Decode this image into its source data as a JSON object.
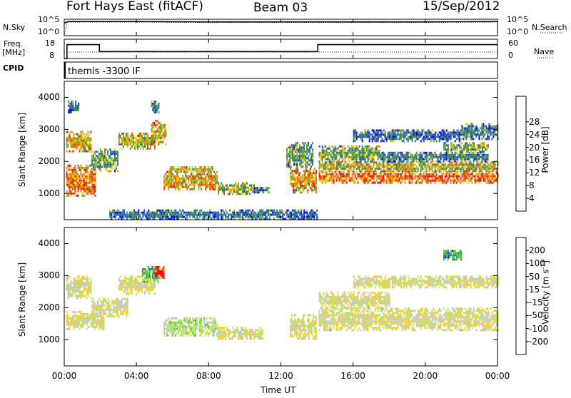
{
  "header": {
    "station": "Fort Hays East (fitACF)",
    "beam": "Beam 03",
    "date": "15/Sep/2012"
  },
  "aux_labels": {
    "nsky": "N.Sky",
    "nsky_ticks": [
      "10^5",
      "10^0"
    ],
    "nsearch": "N.Search",
    "nsearch_ticks": [
      "10^5",
      "10^0"
    ],
    "freq_line1": "Freq.",
    "freq_line2": "[MHz]",
    "freq_ticks": [
      "18",
      "8"
    ],
    "nave": "Nave",
    "nave_ticks": [
      "60",
      "0"
    ],
    "cpid": "CPID",
    "program": "themis -3300 IF"
  },
  "chart_data": [
    {
      "type": "line",
      "panel": "noise",
      "series": [
        {
          "name": "N.Sky",
          "style": "solid",
          "x": [
            0,
            0.15,
            0.3,
            4,
            8,
            12,
            16,
            20,
            24
          ],
          "y": [
            3.8,
            4.2,
            4.3,
            4.3,
            4.2,
            4.2,
            4.2,
            4.2,
            4.3
          ]
        },
        {
          "name": "N.Search",
          "style": "dotted",
          "x": [
            0,
            0.15,
            0.3,
            4,
            8,
            12,
            16,
            20,
            24
          ],
          "y": [
            0,
            4.0,
            4.1,
            4.1,
            4.0,
            4.0,
            4.0,
            4.0,
            4.1
          ]
        }
      ],
      "ylim": [
        0,
        5
      ]
    },
    {
      "type": "line",
      "panel": "frequency",
      "series": [
        {
          "name": "Freq.",
          "style": "solid",
          "x": [
            0,
            0.15,
            0.15,
            1.95,
            1.95,
            14.05,
            14.05,
            24
          ],
          "y": [
            8,
            8,
            15.2,
            15.2,
            11.6,
            11.6,
            15.2,
            15.2
          ]
        },
        {
          "name": "Nave",
          "style": "dotted",
          "x": [
            0,
            24
          ],
          "y": [
            20,
            20
          ]
        }
      ],
      "freq_lim": [
        8,
        18
      ],
      "nave_lim": [
        0,
        60
      ]
    },
    {
      "type": "heatmap",
      "panel": "power",
      "xlabel": "",
      "ylabel": "Slant Range [km]",
      "xlim": [
        0,
        24
      ],
      "ylim": [
        180,
        4500
      ],
      "yticks": [
        1000,
        2000,
        3000,
        4000
      ],
      "colorbar": {
        "label": "Power [dB]",
        "range": [
          0,
          32
        ],
        "tick_labels": [
          "4",
          "8",
          "12",
          "16",
          "20",
          "24",
          "28"
        ],
        "colors": [
          "#0000ff",
          "#1e50c8",
          "#2d7878",
          "#3c8c3c",
          "#78b43c",
          "#f0c800",
          "#f08c00",
          "#f05000",
          "#e61414"
        ]
      },
      "regions": [
        {
          "t": [
            0.1,
            1.7
          ],
          "r": [
            900,
            1900
          ],
          "power": 24
        },
        {
          "t": [
            0.1,
            1.5
          ],
          "r": [
            2300,
            2950
          ],
          "power": 20
        },
        {
          "t": [
            0.2,
            0.8
          ],
          "r": [
            3500,
            3900
          ],
          "power": 8
        },
        {
          "t": [
            1.5,
            3.0
          ],
          "r": [
            1700,
            2400
          ],
          "power": 14
        },
        {
          "t": [
            3.0,
            5.0
          ],
          "r": [
            2400,
            2900
          ],
          "power": 18
        },
        {
          "t": [
            4.8,
            5.6
          ],
          "r": [
            2500,
            3300
          ],
          "power": 20
        },
        {
          "t": [
            4.8,
            5.2
          ],
          "r": [
            3500,
            3900
          ],
          "power": 10
        },
        {
          "t": [
            5.5,
            8.5
          ],
          "r": [
            1100,
            1700
          ],
          "power": 20
        },
        {
          "t": [
            5.8,
            8.2
          ],
          "r": [
            1700,
            1850
          ],
          "power": 18
        },
        {
          "t": [
            8.5,
            10.5
          ],
          "r": [
            1000,
            1350
          ],
          "power": 16
        },
        {
          "t": [
            10.5,
            11.3
          ],
          "r": [
            1000,
            1200
          ],
          "power": 8
        },
        {
          "t": [
            12.5,
            14.0
          ],
          "r": [
            1000,
            1800
          ],
          "power": 22
        },
        {
          "t": [
            12.3,
            13.8
          ],
          "r": [
            1800,
            2600
          ],
          "power": 12
        },
        {
          "t": [
            14.1,
            24.0
          ],
          "r": [
            1350,
            1700
          ],
          "power": 26
        },
        {
          "t": [
            14.1,
            24.0
          ],
          "r": [
            1700,
            2000
          ],
          "power": 18
        },
        {
          "t": [
            14.1,
            17.5
          ],
          "r": [
            2000,
            2500
          ],
          "power": 14
        },
        {
          "t": [
            17.5,
            23.5
          ],
          "r": [
            2000,
            2300
          ],
          "power": 10
        },
        {
          "t": [
            21.0,
            23.5
          ],
          "r": [
            2300,
            2600
          ],
          "power": 14
        },
        {
          "t": [
            16.0,
            22.0
          ],
          "r": [
            2600,
            3000
          ],
          "power": 8
        },
        {
          "t": [
            22.0,
            24.0
          ],
          "r": [
            2700,
            3200
          ],
          "power": 10
        },
        {
          "t": [
            2.5,
            14.0
          ],
          "r": [
            200,
            500
          ],
          "power": 8
        }
      ]
    },
    {
      "type": "heatmap",
      "panel": "velocity",
      "xlabel": "Time UT",
      "ylabel": "Slant Range [km]",
      "xlim": [
        0,
        24
      ],
      "ylim": [
        180,
        4500
      ],
      "xtick_labels": [
        "00:00",
        "04:00",
        "08:00",
        "12:00",
        "16:00",
        "20:00",
        "00:00"
      ],
      "xticks": [
        0,
        4,
        8,
        12,
        16,
        20,
        24
      ],
      "yticks": [
        1000,
        2000,
        3000,
        4000
      ],
      "colorbar": {
        "label": "Velocity [m s",
        "label_superscript": "-1",
        "label_close": "]",
        "range": [
          -250,
          250
        ],
        "tick_labels": [
          "200",
          "100",
          "50",
          "15",
          "-15",
          "-50",
          "-100",
          "-200"
        ],
        "colors": [
          "#ff0000",
          "#ff6400",
          "#ffa000",
          "#ffd200",
          "#c8c8c8",
          "#b4e650",
          "#50c832",
          "#2878a0",
          "#0000c8"
        ]
      },
      "regions": [
        {
          "t": [
            0.1,
            2.2
          ],
          "r": [
            1300,
            1900
          ],
          "vel": 0
        },
        {
          "t": [
            0.1,
            1.5
          ],
          "r": [
            2300,
            3000
          ],
          "vel": 0
        },
        {
          "t": [
            1.5,
            3.5
          ],
          "r": [
            1700,
            2300
          ],
          "vel": 0
        },
        {
          "t": [
            3.0,
            5.0
          ],
          "r": [
            2400,
            3000
          ],
          "vel": 0
        },
        {
          "t": [
            4.3,
            5.3
          ],
          "r": [
            2800,
            3300
          ],
          "vel": 120
        },
        {
          "t": [
            5.0,
            5.5
          ],
          "r": [
            2900,
            3300
          ],
          "vel": -220
        },
        {
          "t": [
            5.5,
            8.5
          ],
          "r": [
            1100,
            1700
          ],
          "vel": 40
        },
        {
          "t": [
            8.5,
            11.0
          ],
          "r": [
            1000,
            1400
          ],
          "vel": 0
        },
        {
          "t": [
            12.5,
            14.0
          ],
          "r": [
            1000,
            1800
          ],
          "vel": 0
        },
        {
          "t": [
            14.1,
            24.0
          ],
          "r": [
            1300,
            2000
          ],
          "vel": 0
        },
        {
          "t": [
            14.1,
            18.0
          ],
          "r": [
            2000,
            2500
          ],
          "vel": 0
        },
        {
          "t": [
            16.0,
            24.0
          ],
          "r": [
            2600,
            3000
          ],
          "vel": 0
        },
        {
          "t": [
            21.0,
            22.0
          ],
          "r": [
            3500,
            3800
          ],
          "vel": 150
        }
      ]
    }
  ]
}
